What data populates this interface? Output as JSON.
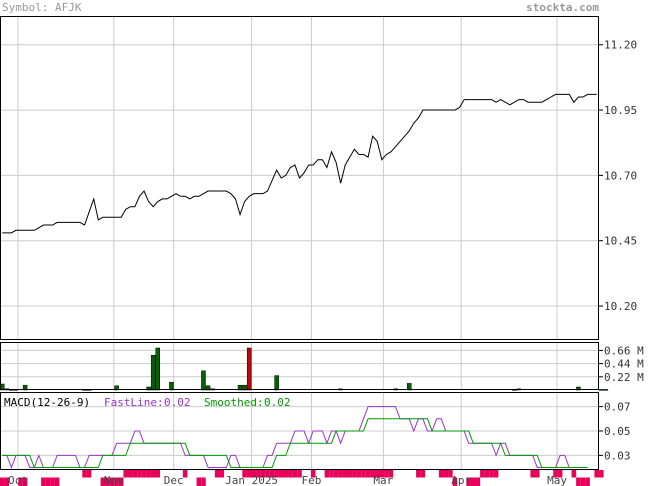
{
  "header": {
    "symbol_text": "Symbol: AFJK",
    "site_text": "stockta.com"
  },
  "colors": {
    "header_text": "#999999",
    "grid": "#cccccc",
    "frame": "#000000",
    "price_line": "#000000",
    "vol_up": "#006400",
    "vol_down": "#cc0000",
    "macd_fast": "#9933cc",
    "macd_smooth": "#009900",
    "hist_bar": "#e8005a"
  },
  "chart_data": [
    {
      "id": "price",
      "type": "line",
      "title": "",
      "ylim": [
        10.07,
        11.31
      ],
      "y_ticks": [
        10.2,
        10.45,
        10.7,
        10.95,
        11.2
      ],
      "y_tick_labels": [
        "10.20",
        "10.45",
        "10.70",
        "10.95",
        "11.20"
      ],
      "x_month_labels": [
        "Oct",
        "Nov",
        "Dec",
        "Jan 2025",
        "Feb",
        "Mar",
        "Apr",
        "May"
      ],
      "x_month_pos": [
        0.03,
        0.19,
        0.29,
        0.42,
        0.52,
        0.64,
        0.77,
        0.93
      ],
      "series": [
        {
          "name": "",
          "values": [
            10.48,
            10.48,
            10.48,
            10.49,
            10.49,
            10.49,
            10.49,
            10.49,
            10.5,
            10.51,
            10.51,
            10.51,
            10.52,
            10.52,
            10.52,
            10.52,
            10.52,
            10.52,
            10.51,
            10.56,
            10.61,
            10.53,
            10.54,
            10.54,
            10.54,
            10.54,
            10.54,
            10.57,
            10.58,
            10.58,
            10.62,
            10.64,
            10.6,
            10.58,
            10.6,
            10.61,
            10.61,
            10.62,
            10.63,
            10.62,
            10.62,
            10.61,
            10.62,
            10.62,
            10.63,
            10.64,
            10.64,
            10.64,
            10.64,
            10.64,
            10.63,
            10.61,
            10.55,
            10.6,
            10.62,
            10.63,
            10.63,
            10.63,
            10.64,
            10.68,
            10.72,
            10.69,
            10.7,
            10.73,
            10.74,
            10.69,
            10.71,
            10.74,
            10.74,
            10.76,
            10.76,
            10.73,
            10.79,
            10.75,
            10.67,
            10.74,
            10.77,
            10.8,
            10.78,
            10.78,
            10.77,
            10.85,
            10.83,
            10.76,
            10.78,
            10.79,
            10.81,
            10.83,
            10.85,
            10.87,
            10.9,
            10.92,
            10.95,
            10.95,
            10.95,
            10.95,
            10.95,
            10.95,
            10.95,
            10.95,
            10.96,
            10.99,
            10.99,
            10.99,
            10.99,
            10.99,
            10.99,
            10.99,
            10.98,
            10.99,
            10.98,
            10.97,
            10.98,
            10.99,
            10.99,
            10.98,
            10.98,
            10.98,
            10.98,
            10.99,
            11.0,
            11.01,
            11.01,
            11.01,
            11.01,
            10.98,
            11.0,
            11.0,
            11.01,
            11.01,
            11.01
          ]
        }
      ]
    },
    {
      "id": "volume",
      "type": "bar",
      "title": "",
      "ylim": [
        0,
        0.8
      ],
      "y_ticks": [
        0.22,
        0.44,
        0.66
      ],
      "y_tick_labels": [
        "0.22 M",
        "0.44 M",
        "0.66 M"
      ],
      "values": [
        0.1,
        0.02,
        0.01,
        0.01,
        0.0,
        0.08,
        0.0,
        0.0,
        0.0,
        0.0,
        0.0,
        0.0,
        0.0,
        0.0,
        0.0,
        0.0,
        0.0,
        0.0,
        0.01,
        0.01,
        0.0,
        0.0,
        0.0,
        0.0,
        0.0,
        0.07,
        0.0,
        0.0,
        0.0,
        0.0,
        0.0,
        0.0,
        0.05,
        0.58,
        0.7,
        0.0,
        0.0,
        0.13,
        0.0,
        0.0,
        0.0,
        0.0,
        0.0,
        0.0,
        0.32,
        0.07,
        0.02,
        0.0,
        0.0,
        0.0,
        0.0,
        0.0,
        0.08,
        0.08,
        0.7,
        0.0,
        0.0,
        0.0,
        0.0,
        0.0,
        0.24,
        0.0,
        0.0,
        0.0,
        0.0,
        0.0,
        0.0,
        0.0,
        0.0,
        0.0,
        0.0,
        0.0,
        0.0,
        0.0,
        0.02,
        0.0,
        0.0,
        0.0,
        0.0,
        0.0,
        0.0,
        0.0,
        0.0,
        0.0,
        0.0,
        0.0,
        0.02,
        0.0,
        0.0,
        0.11,
        0.0,
        0.0,
        0.0,
        0.0,
        0.0,
        0.0,
        0.0,
        0.0,
        0.0,
        0.0,
        0.0,
        0.0,
        0.0,
        0.0,
        0.0,
        0.0,
        0.0,
        0.0,
        0.0,
        0.0,
        0.0,
        0.0,
        0.01,
        0.02,
        0.0,
        0.0,
        0.0,
        0.0,
        0.0,
        0.0,
        0.0,
        0.0,
        0.0,
        0.0,
        0.0,
        0.0,
        0.05,
        0.0,
        0.0,
        0.0,
        0.0,
        0.01,
        0.01,
        0.0,
        0.0,
        0.0,
        0.0
      ],
      "down_index": [
        54
      ]
    },
    {
      "id": "macd",
      "type": "line",
      "title": "MACD(12-26-9)",
      "ylim": [
        0.018,
        0.082
      ],
      "y_ticks": [
        0.03,
        0.05,
        0.07
      ],
      "y_tick_labels": [
        "0.03",
        "0.05",
        "0.07"
      ],
      "series": [
        {
          "name": "FastLine",
          "values": [
            0.03,
            0.03,
            0.02,
            0.03,
            0.03,
            0.03,
            0.02,
            0.02,
            0.03,
            0.02,
            0.02,
            0.02,
            0.03,
            0.03,
            0.03,
            0.03,
            0.03,
            0.02,
            0.02,
            0.03,
            0.03,
            0.03,
            0.03,
            0.03,
            0.03,
            0.04,
            0.04,
            0.04,
            0.04,
            0.05,
            0.05,
            0.04,
            0.04,
            0.04,
            0.04,
            0.04,
            0.04,
            0.04,
            0.04,
            0.04,
            0.03,
            0.03,
            0.03,
            0.03,
            0.03,
            0.02,
            0.02,
            0.02,
            0.02,
            0.02,
            0.03,
            0.03,
            0.02,
            0.02,
            0.02,
            0.02,
            0.02,
            0.02,
            0.03,
            0.03,
            0.04,
            0.04,
            0.04,
            0.04,
            0.05,
            0.05,
            0.05,
            0.04,
            0.05,
            0.05,
            0.05,
            0.04,
            0.05,
            0.05,
            0.04,
            0.05,
            0.05,
            0.05,
            0.05,
            0.06,
            0.07,
            0.07,
            0.07,
            0.07,
            0.07,
            0.07,
            0.07,
            0.06,
            0.06,
            0.06,
            0.05,
            0.06,
            0.06,
            0.05,
            0.05,
            0.06,
            0.06,
            0.05,
            0.05,
            0.05,
            0.05,
            0.05,
            0.04,
            0.04,
            0.04,
            0.04,
            0.04,
            0.04,
            0.03,
            0.04,
            0.04,
            0.03,
            0.03,
            0.03,
            0.03,
            0.03,
            0.03,
            0.02,
            0.02,
            0.02,
            0.02,
            0.02,
            0.03,
            0.03,
            0.02,
            0.02,
            0.02,
            0.02,
            0.02
          ],
          "label_value": "0.02"
        },
        {
          "name": "Smoothed",
          "values": [
            0.03,
            0.03,
            0.03,
            0.03,
            0.03,
            0.03,
            0.03,
            0.02,
            0.02,
            0.02,
            0.02,
            0.02,
            0.02,
            0.02,
            0.02,
            0.02,
            0.02,
            0.02,
            0.02,
            0.02,
            0.02,
            0.02,
            0.03,
            0.03,
            0.03,
            0.03,
            0.03,
            0.03,
            0.04,
            0.04,
            0.04,
            0.04,
            0.04,
            0.04,
            0.04,
            0.04,
            0.04,
            0.04,
            0.04,
            0.04,
            0.04,
            0.03,
            0.03,
            0.03,
            0.03,
            0.03,
            0.03,
            0.03,
            0.03,
            0.03,
            0.02,
            0.02,
            0.02,
            0.02,
            0.02,
            0.02,
            0.02,
            0.02,
            0.02,
            0.02,
            0.03,
            0.03,
            0.03,
            0.04,
            0.04,
            0.04,
            0.04,
            0.04,
            0.04,
            0.04,
            0.04,
            0.04,
            0.04,
            0.05,
            0.05,
            0.05,
            0.05,
            0.05,
            0.05,
            0.05,
            0.06,
            0.06,
            0.06,
            0.06,
            0.06,
            0.06,
            0.06,
            0.06,
            0.06,
            0.06,
            0.06,
            0.06,
            0.06,
            0.06,
            0.05,
            0.05,
            0.05,
            0.05,
            0.05,
            0.05,
            0.05,
            0.05,
            0.05,
            0.04,
            0.04,
            0.04,
            0.04,
            0.04,
            0.04,
            0.04,
            0.03,
            0.03,
            0.03,
            0.03,
            0.03,
            0.03,
            0.03,
            0.03,
            0.02,
            0.02,
            0.02,
            0.02,
            0.02,
            0.02,
            0.02,
            0.02,
            0.02,
            0.02,
            0.02
          ],
          "label_value": "0.02"
        }
      ],
      "histogram_sign": [
        -1,
        -1,
        0,
        0,
        -1,
        -1,
        0,
        0,
        0,
        -1,
        -1,
        -1,
        -1,
        0,
        0,
        0,
        0,
        0,
        1,
        1,
        0,
        0,
        -1,
        -1,
        -1,
        -1,
        -1,
        1,
        1,
        1,
        1,
        1,
        1,
        1,
        1,
        0,
        0,
        0,
        0,
        0,
        1,
        0,
        0,
        -1,
        -1,
        0,
        0,
        1,
        1,
        0,
        0,
        0,
        0,
        1,
        1,
        1,
        1,
        1,
        1,
        1,
        1,
        1,
        1,
        1,
        1,
        1,
        0,
        0,
        1,
        0,
        0,
        1,
        1,
        1,
        1,
        1,
        1,
        1,
        1,
        1,
        1,
        1,
        1,
        1,
        1,
        1,
        0,
        0,
        0,
        0,
        0,
        1,
        1,
        0,
        0,
        0,
        1,
        1,
        1,
        -1,
        0,
        0,
        -1,
        -1,
        -1,
        1,
        1,
        1,
        1,
        0,
        0,
        0,
        0,
        0,
        0,
        0,
        1,
        1,
        0,
        0,
        0,
        1,
        1,
        0,
        0,
        1,
        -1,
        -1,
        -1,
        0,
        1,
        1,
        0
      ]
    }
  ]
}
